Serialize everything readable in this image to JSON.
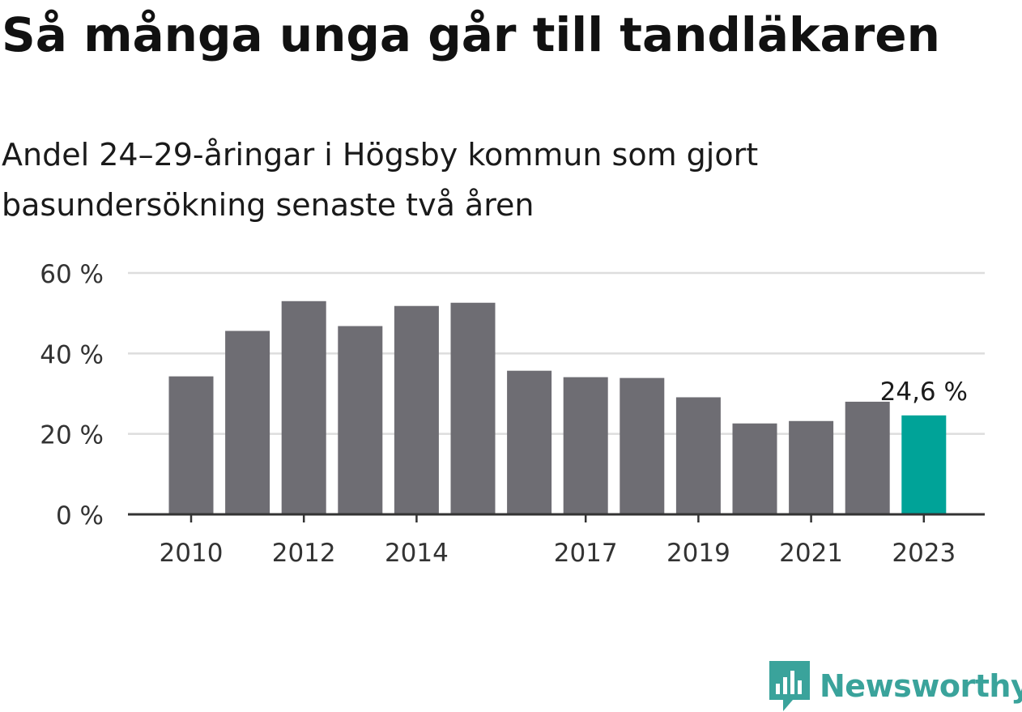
{
  "title": "Så många unga går till tandläkaren",
  "subtitle": "Andel 24–29-åringar i Högsby kommun som gjort basundersökning senaste två åren",
  "brand": "Newsworthy",
  "colors": {
    "bar": "#6e6d73",
    "highlight": "#00a398",
    "grid": "#dddddd",
    "axis": "#333333",
    "brand": "#3aa39b"
  },
  "chart_data": {
    "type": "bar",
    "categories": [
      "2010",
      "2011",
      "2012",
      "2013",
      "2014",
      "2015",
      "2016",
      "2017",
      "2018",
      "2019",
      "2020",
      "2021",
      "2022",
      "2023"
    ],
    "values": [
      34.3,
      45.6,
      53.0,
      46.8,
      51.8,
      52.6,
      35.7,
      34.1,
      33.9,
      29.1,
      22.6,
      23.2,
      28.0,
      24.6
    ],
    "tick_labels": [
      "2010",
      "2012",
      "2014",
      "2017",
      "2019",
      "2021",
      "2023"
    ],
    "y_ticks": [
      "0 %",
      "20 %",
      "40 %",
      "60 %"
    ],
    "ylim": [
      0,
      60
    ],
    "highlight": {
      "category": "2023",
      "label": "24,6 %"
    },
    "grid": true
  }
}
